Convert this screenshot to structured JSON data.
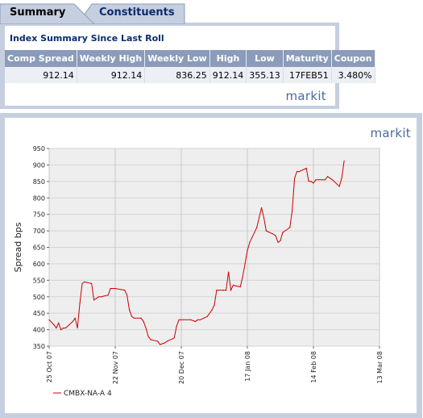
{
  "tabs": [
    {
      "label": "Summary",
      "active": true
    },
    {
      "label": "Constituents",
      "active": false
    }
  ],
  "summary": {
    "title": "Index Summary Since Last Roll",
    "columns": [
      "Comp Spread",
      "Weekly High",
      "Weekly Low",
      "High",
      "Low",
      "Maturity",
      "Coupon"
    ],
    "row": [
      "912.14",
      "912.14",
      "836.25",
      "912.14",
      "355.13",
      "17FEB51",
      "3.480%"
    ],
    "logo_text": "markit"
  },
  "chart_panel": {
    "logo_text": "markit"
  },
  "chart_data": {
    "type": "line",
    "title": "",
    "ylabel": "Spread bps",
    "xlabel": "",
    "ylim": [
      350,
      950
    ],
    "yticks": [
      350,
      400,
      450,
      500,
      550,
      600,
      650,
      700,
      750,
      800,
      850,
      900,
      950
    ],
    "xlim": [
      "2007-10-25",
      "2008-03-13"
    ],
    "xticks": [
      "2007-10-25",
      "2007-11-22",
      "2007-12-20",
      "2008-01-17",
      "2008-02-14",
      "2008-03-13"
    ],
    "xtick_labels": [
      "25 Oct 07",
      "22 Nov 07",
      "20 Dec 07",
      "17 Jan 08",
      "14 Feb 08",
      "13 Mar 08"
    ],
    "grid": true,
    "legend_position": "bottom-left",
    "series": [
      {
        "name": "CMBX-NA-A 4",
        "color": "#cc0000",
        "points": [
          [
            "2007-10-25",
            430
          ],
          [
            "2007-10-27",
            415
          ],
          [
            "2007-10-28",
            405
          ],
          [
            "2007-10-29",
            420
          ],
          [
            "2007-10-30",
            400
          ],
          [
            "2007-10-31",
            405
          ],
          [
            "2007-11-01",
            405
          ],
          [
            "2007-11-04",
            425
          ],
          [
            "2007-11-05",
            435
          ],
          [
            "2007-11-06",
            405
          ],
          [
            "2007-11-07",
            480
          ],
          [
            "2007-11-08",
            540
          ],
          [
            "2007-11-09",
            545
          ],
          [
            "2007-11-12",
            540
          ],
          [
            "2007-11-13",
            490
          ],
          [
            "2007-11-14",
            495
          ],
          [
            "2007-11-15",
            500
          ],
          [
            "2007-11-16",
            500
          ],
          [
            "2007-11-19",
            505
          ],
          [
            "2007-11-20",
            525
          ],
          [
            "2007-11-22",
            525
          ],
          [
            "2007-11-26",
            520
          ],
          [
            "2007-11-27",
            505
          ],
          [
            "2007-11-28",
            460
          ],
          [
            "2007-11-29",
            440
          ],
          [
            "2007-11-30",
            435
          ],
          [
            "2007-12-03",
            435
          ],
          [
            "2007-12-04",
            425
          ],
          [
            "2007-12-05",
            405
          ],
          [
            "2007-12-06",
            380
          ],
          [
            "2007-12-07",
            370
          ],
          [
            "2007-12-10",
            365
          ],
          [
            "2007-12-11",
            355
          ],
          [
            "2007-12-13",
            360
          ],
          [
            "2007-12-14",
            365
          ],
          [
            "2007-12-17",
            375
          ],
          [
            "2007-12-18",
            410
          ],
          [
            "2007-12-19",
            430
          ],
          [
            "2007-12-20",
            430
          ],
          [
            "2007-12-24",
            430
          ],
          [
            "2007-12-26",
            425
          ],
          [
            "2007-12-27",
            430
          ],
          [
            "2007-12-28",
            430
          ],
          [
            "2007-12-31",
            440
          ],
          [
            "2008-01-02",
            460
          ],
          [
            "2008-01-03",
            475
          ],
          [
            "2008-01-04",
            520
          ],
          [
            "2008-01-07",
            520
          ],
          [
            "2008-01-08",
            520
          ],
          [
            "2008-01-09",
            575
          ],
          [
            "2008-01-10",
            520
          ],
          [
            "2008-01-11",
            535
          ],
          [
            "2008-01-14",
            530
          ],
          [
            "2008-01-15",
            560
          ],
          [
            "2008-01-16",
            600
          ],
          [
            "2008-01-17",
            640
          ],
          [
            "2008-01-18",
            665
          ],
          [
            "2008-01-21",
            710
          ],
          [
            "2008-01-22",
            740
          ],
          [
            "2008-01-23",
            770
          ],
          [
            "2008-01-24",
            740
          ],
          [
            "2008-01-25",
            700
          ],
          [
            "2008-01-28",
            690
          ],
          [
            "2008-01-29",
            685
          ],
          [
            "2008-01-30",
            665
          ],
          [
            "2008-01-31",
            670
          ],
          [
            "2008-02-01",
            695
          ],
          [
            "2008-02-04",
            710
          ],
          [
            "2008-02-05",
            760
          ],
          [
            "2008-02-06",
            860
          ],
          [
            "2008-02-07",
            880
          ],
          [
            "2008-02-08",
            880
          ],
          [
            "2008-02-11",
            890
          ],
          [
            "2008-02-12",
            850
          ],
          [
            "2008-02-13",
            850
          ],
          [
            "2008-02-14",
            845
          ],
          [
            "2008-02-15",
            855
          ],
          [
            "2008-02-18",
            855
          ],
          [
            "2008-02-19",
            855
          ],
          [
            "2008-02-20",
            865
          ],
          [
            "2008-02-21",
            860
          ],
          [
            "2008-02-22",
            855
          ],
          [
            "2008-02-25",
            835
          ],
          [
            "2008-02-26",
            860
          ],
          [
            "2008-02-27",
            912
          ]
        ]
      }
    ]
  }
}
